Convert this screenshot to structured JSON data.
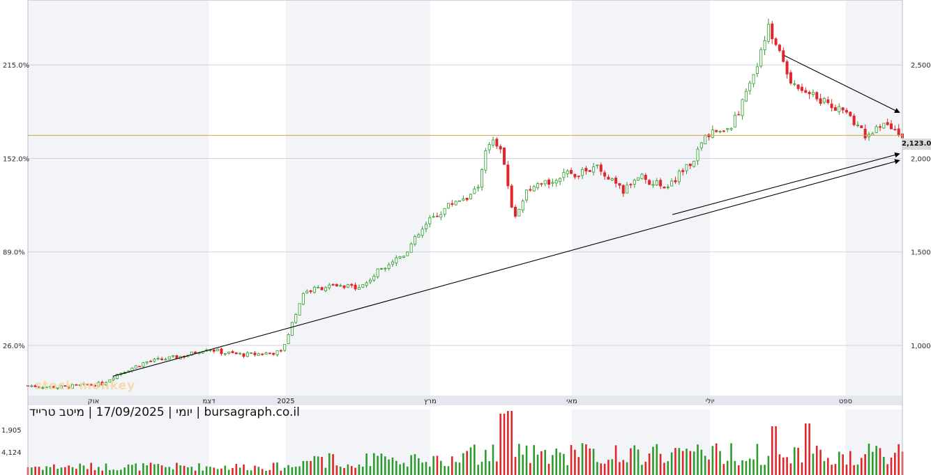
{
  "caption": "יומי | 17/09/2025 | מיטב טרייד | bursagraph.co.il",
  "watermark": "stock monkey",
  "last_price_label": "2,123.00",
  "chart_data": {
    "type": "candlestick",
    "instrument": "מיטב טרייד",
    "timeframe": "יומי",
    "date": "17/09/2025",
    "source": "bursagraph.co.il",
    "months": [
      "אוק",
      "דצמ",
      "2025",
      "מרץ",
      "מאי",
      "יולי",
      "ספט"
    ],
    "right_axis": {
      "ticks": [
        1000,
        1500,
        2000,
        2500
      ],
      "labels": [
        "1,000",
        "1,500",
        "2,000",
        "2,500"
      ],
      "range": [
        732,
        2847
      ]
    },
    "left_axis": {
      "ticks": [
        26.0,
        89.0,
        152.0,
        215.0
      ],
      "labels": [
        "26.0%",
        "89.0%",
        "152.0%",
        "215.0%"
      ]
    },
    "volume_axis": {
      "ticks": [
        1905,
        4124
      ],
      "labels": [
        "1,905",
        "4,124"
      ]
    },
    "last_price": 2123,
    "horizontal_line": 2123,
    "price_path": [
      {
        "t": 0,
        "v": 785
      },
      {
        "t": 0.035,
        "v": 776
      },
      {
        "t": 0.085,
        "v": 795
      },
      {
        "t": 0.1,
        "v": 842
      },
      {
        "t": 0.135,
        "v": 912
      },
      {
        "t": 0.18,
        "v": 945
      },
      {
        "t": 0.205,
        "v": 985
      },
      {
        "t": 0.225,
        "v": 960
      },
      {
        "t": 0.25,
        "v": 950
      },
      {
        "t": 0.29,
        "v": 965
      },
      {
        "t": 0.3,
        "v": 1090
      },
      {
        "t": 0.315,
        "v": 1285
      },
      {
        "t": 0.34,
        "v": 1315
      },
      {
        "t": 0.365,
        "v": 1310
      },
      {
        "t": 0.385,
        "v": 1325
      },
      {
        "t": 0.405,
        "v": 1420
      },
      {
        "t": 0.43,
        "v": 1490
      },
      {
        "t": 0.46,
        "v": 1670
      },
      {
        "t": 0.49,
        "v": 1780
      },
      {
        "t": 0.5,
        "v": 1790
      },
      {
        "t": 0.515,
        "v": 1840
      },
      {
        "t": 0.525,
        "v": 2100
      },
      {
        "t": 0.54,
        "v": 2060
      },
      {
        "t": 0.55,
        "v": 1830
      },
      {
        "t": 0.555,
        "v": 1680
      },
      {
        "t": 0.57,
        "v": 1810
      },
      {
        "t": 0.6,
        "v": 1890
      },
      {
        "t": 0.65,
        "v": 1950
      },
      {
        "t": 0.68,
        "v": 1820
      },
      {
        "t": 0.7,
        "v": 1920
      },
      {
        "t": 0.715,
        "v": 1860
      },
      {
        "t": 0.735,
        "v": 1860
      },
      {
        "t": 0.76,
        "v": 1990
      },
      {
        "t": 0.78,
        "v": 2150
      },
      {
        "t": 0.8,
        "v": 2140
      },
      {
        "t": 0.825,
        "v": 2370
      },
      {
        "t": 0.845,
        "v": 2700
      },
      {
        "t": 0.855,
        "v": 2620
      },
      {
        "t": 0.87,
        "v": 2430
      },
      {
        "t": 0.9,
        "v": 2330
      },
      {
        "t": 0.93,
        "v": 2260
      },
      {
        "t": 0.96,
        "v": 2120
      },
      {
        "t": 0.98,
        "v": 2180
      },
      {
        "t": 1.0,
        "v": 2123
      }
    ],
    "trendlines": [
      {
        "from": {
          "t": 0.097,
          "v": 835
        },
        "to": {
          "t": 1.0,
          "v": 1990
        },
        "arrow": true
      },
      {
        "from": {
          "t": 0.737,
          "v": 1700
        },
        "to": {
          "t": 1.0,
          "v": 2025
        },
        "arrow": true
      },
      {
        "from": {
          "t": 0.865,
          "v": 2550
        },
        "to": {
          "t": 1.0,
          "v": 2245
        },
        "arrow": true
      }
    ]
  }
}
